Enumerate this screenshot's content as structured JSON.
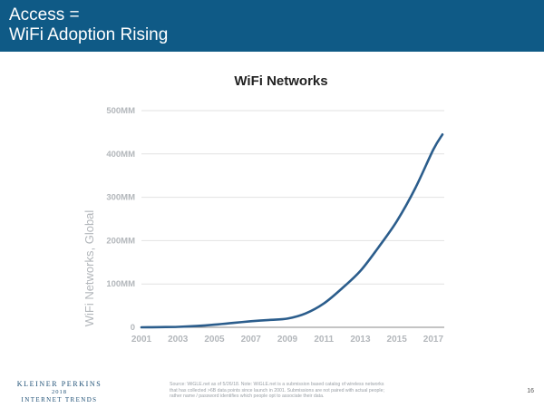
{
  "header": {
    "title_line1": "Access =",
    "title_line2": "WiFi Adoption Rising"
  },
  "colors": {
    "header_bg": "#0f5a86",
    "line": "#2b5d8c",
    "axis_text": "#b3b7bb",
    "grid": "#e2e2e2",
    "brand": "#1c4e74"
  },
  "chart_data": {
    "type": "line",
    "title": "WiFi Networks",
    "ylabel": "WiFi Networks, Global",
    "xlabel": "",
    "ylim": [
      0,
      500
    ],
    "xlim": [
      2001,
      2017.6
    ],
    "yticks": [
      0,
      100,
      200,
      300,
      400,
      500
    ],
    "ytick_labels": [
      "0",
      "100MM",
      "200MM",
      "300MM",
      "400MM",
      "500MM"
    ],
    "xticks": [
      2001,
      2003,
      2005,
      2007,
      2009,
      2011,
      2013,
      2015,
      2017
    ],
    "xtick_labels": [
      "2001",
      "2003",
      "2005",
      "2007",
      "2009",
      "2011",
      "2013",
      "2015",
      "2017"
    ],
    "grid": true,
    "legend": "none",
    "series": [
      {
        "x": [
          2001,
          2002,
          2003,
          2004,
          2005,
          2006,
          2007,
          2008,
          2009,
          2010,
          2011,
          2012,
          2013,
          2014,
          2015,
          2016,
          2017,
          2017.5
        ],
        "values": [
          0,
          0.5,
          1,
          3,
          6,
          10,
          14,
          17,
          20,
          32,
          55,
          90,
          130,
          185,
          245,
          320,
          410,
          445
        ]
      }
    ]
  },
  "footer": {
    "brand_top": "KLEINER PERKINS",
    "brand_year": "2018",
    "brand_bottom": "INTERNET TRENDS",
    "source": "Source: WiGLE.net as of 5/26/18. Note: WiGLE.net is a submission based catalog of wireless networks that has collected >6B data points since launch in 2001. Submissions are not paired with actual people; rather name / password identifies which people opt to associate their data.",
    "page_number": "16"
  }
}
